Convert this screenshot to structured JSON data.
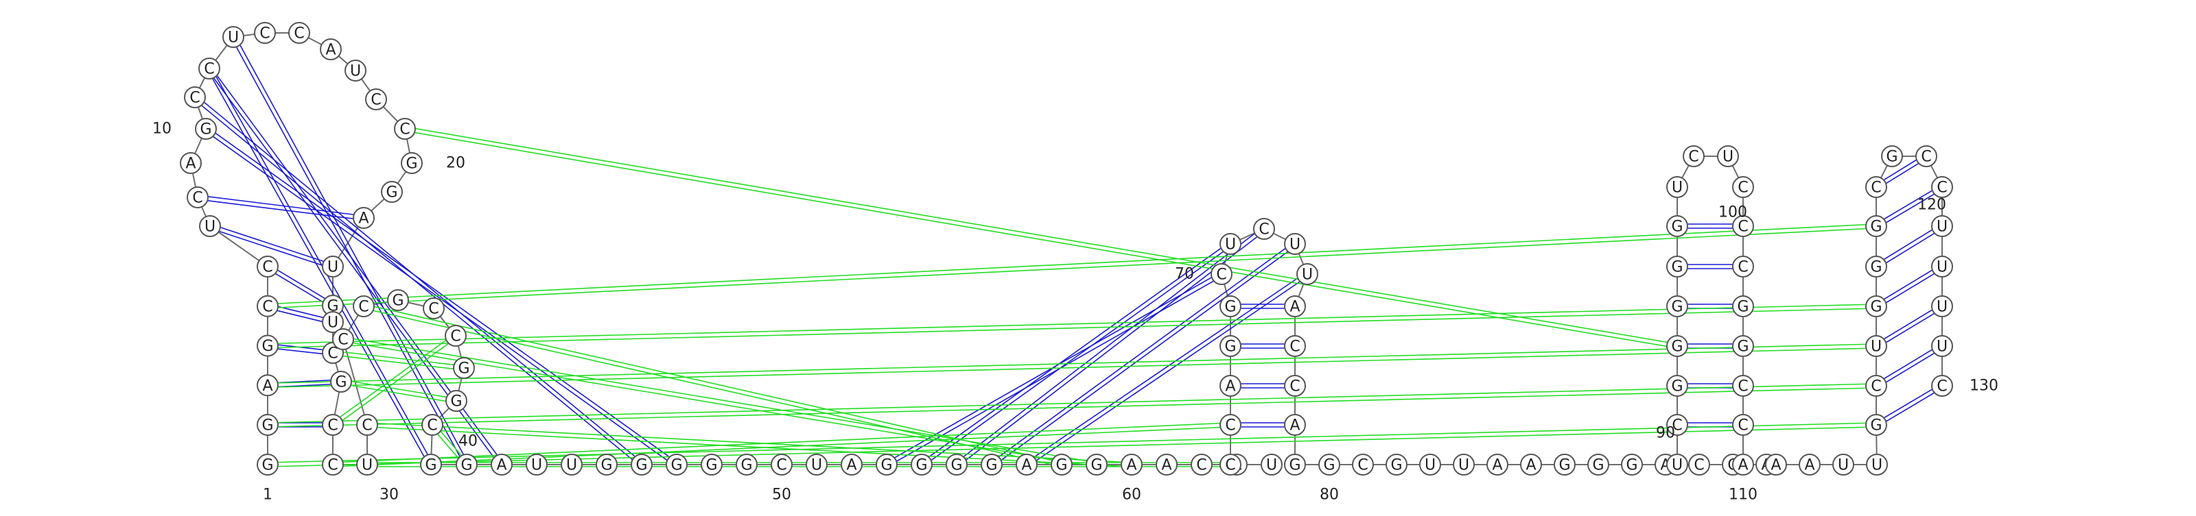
{
  "diagram": {
    "type": "rna-secondary-structure",
    "sequence": "GGAGCCUCAGCCUCCAUCCGGAUGUCGCCUCCCGCCGGCGGAUUGGGGGCUAGGGGAGGAACAUCCAGGCUCUUACCAGGCGUUAAGGGACCAUCGGGGGUCUCCCGGCCAAAUUGCUGGGCGCCUUUUC",
    "position_labels": [
      "1",
      "10",
      "20",
      "30",
      "40",
      "50",
      "60",
      "70",
      "80",
      "90",
      "100",
      "110",
      "120",
      "130"
    ],
    "colors": {
      "backbone": "#6e6e6e",
      "canonical_pair": "#1a1ad6",
      "noncanonical_pair": "#22dd22",
      "nucleotide_fill": "#ffffff",
      "nucleotide_stroke": "#555555"
    }
  }
}
